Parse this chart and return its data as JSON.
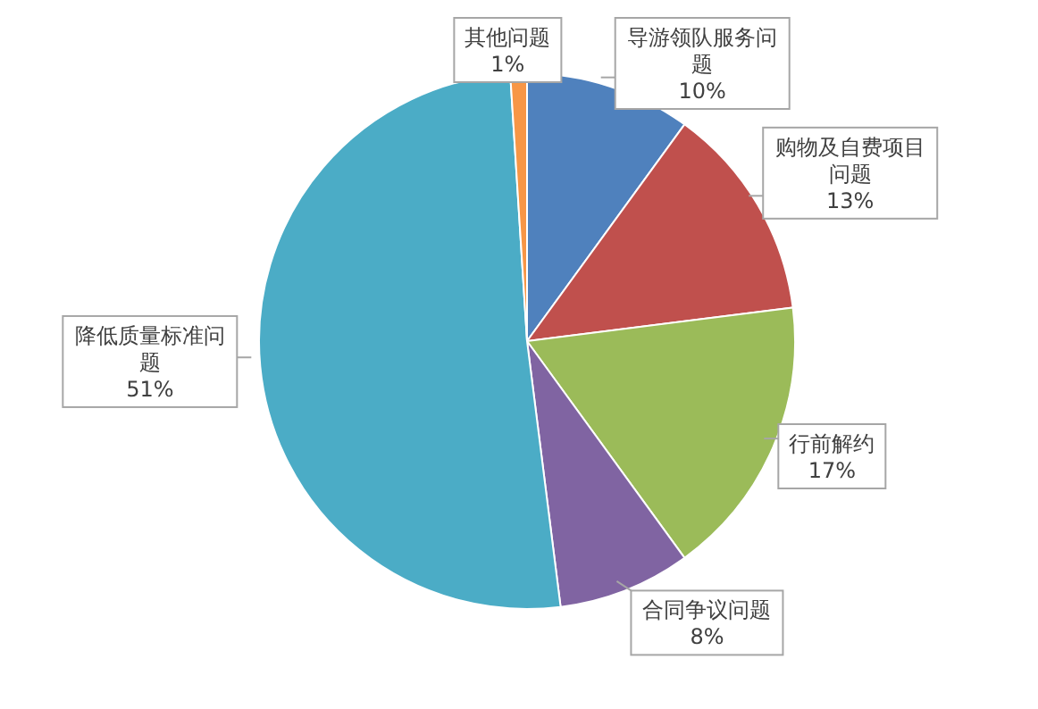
{
  "chart_data": {
    "type": "pie",
    "categories": [
      "导游领队服务问题",
      "购物及自费项目问题",
      "行前解约",
      "合同争议问题",
      "降低质量标准问题",
      "其他问题"
    ],
    "values": [
      10,
      13,
      17,
      8,
      51,
      1
    ],
    "colors": [
      "#4f81bd",
      "#c0504d",
      "#9bbb59",
      "#8064a2",
      "#4bacc6",
      "#f79646"
    ],
    "value_labels": [
      "10%",
      "13%",
      "17%",
      "8%",
      "51%",
      "1%"
    ],
    "legend": false
  }
}
